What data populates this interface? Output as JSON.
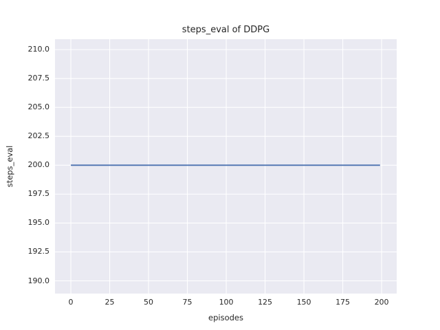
{
  "figure": {
    "background": "#ffffff"
  },
  "chart_data": {
    "type": "line",
    "title": "steps_eval of DDPG",
    "xlabel": "episodes",
    "ylabel": "steps_eval",
    "xlim": [
      -10.2,
      209.7
    ],
    "ylim": [
      188.9,
      210.9
    ],
    "xticks": [
      0,
      25,
      50,
      75,
      100,
      125,
      150,
      175,
      200
    ],
    "xtick_labels": [
      "0",
      "25",
      "50",
      "75",
      "100",
      "125",
      "150",
      "175",
      "200"
    ],
    "yticks": [
      190.0,
      192.5,
      195.0,
      197.5,
      200.0,
      202.5,
      205.0,
      207.5,
      210.0
    ],
    "ytick_labels": [
      "190.0",
      "192.5",
      "195.0",
      "197.5",
      "200.0",
      "202.5",
      "205.0",
      "207.5",
      "210.0"
    ],
    "grid": true,
    "legend_position": "none",
    "series": [
      {
        "name": "steps_eval",
        "color": "#4c72b0",
        "x": [
          0,
          199
        ],
        "y": [
          200,
          200
        ]
      }
    ],
    "style": {
      "plot_background": "#eaeaf2",
      "grid_color": "#ffffff",
      "grid_width": 1.1,
      "line_width": 1.8,
      "text_color": "#262626"
    }
  }
}
